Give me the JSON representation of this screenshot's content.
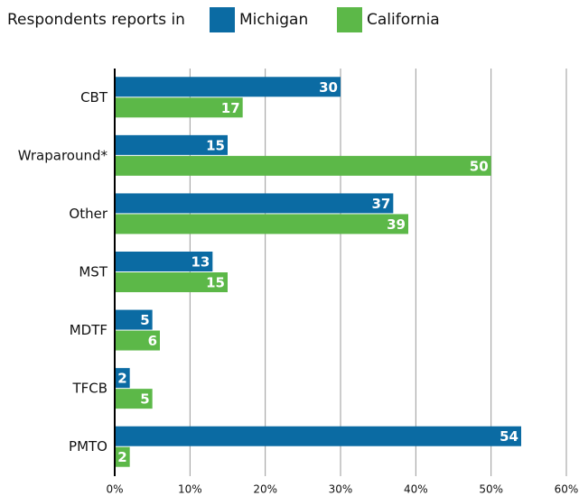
{
  "chart_data": {
    "type": "hbar",
    "legend_title": "Respondents reports in",
    "categories": [
      "CBT",
      "Wraparound*",
      "Other",
      "MST",
      "MDTF",
      "TFCB",
      "PMTO"
    ],
    "series": [
      {
        "name": "Michigan",
        "color": "#0b6ba3",
        "values": [
          30,
          15,
          37,
          13,
          5,
          2,
          54
        ]
      },
      {
        "name": "California",
        "color": "#5cb848",
        "values": [
          17,
          50,
          39,
          15,
          6,
          5,
          2
        ]
      }
    ],
    "xlim": [
      0,
      60
    ],
    "xticks": [
      {
        "value": 0,
        "label": "0%"
      },
      {
        "value": 10,
        "label": "10%"
      },
      {
        "value": 20,
        "label": "20%"
      },
      {
        "value": 30,
        "label": "30%"
      },
      {
        "value": 40,
        "label": "40%"
      },
      {
        "value": 50,
        "label": "50%"
      },
      {
        "value": 60,
        "label": "60%"
      }
    ],
    "grid": true,
    "legend": "top"
  }
}
